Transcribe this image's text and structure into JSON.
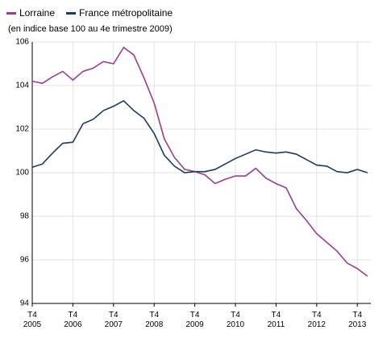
{
  "chart_data": {
    "type": "line",
    "subtitle": "(en indice base 100 au 4e trimestre 2009)",
    "categories": [
      "T4\n2005",
      null,
      null,
      null,
      "T4\n2006",
      null,
      null,
      null,
      "T4\n2007",
      null,
      null,
      null,
      "T4\n2008",
      null,
      null,
      null,
      "T4\n2009",
      null,
      null,
      null,
      "T4\n2010",
      null,
      null,
      null,
      "T4\n2011",
      null,
      null,
      null,
      "T4\n2012",
      null,
      null,
      null,
      "T4\n2013",
      null
    ],
    "series": [
      {
        "name": "Lorraine",
        "color": "#9b3d8f",
        "values": [
          104.2,
          104.1,
          104.4,
          104.65,
          104.25,
          104.65,
          104.8,
          105.1,
          105.0,
          105.75,
          105.4,
          104.35,
          103.2,
          101.55,
          100.7,
          100.15,
          100.05,
          99.9,
          99.5,
          99.7,
          99.85,
          99.85,
          100.2,
          99.75,
          99.5,
          99.3,
          98.35,
          97.8,
          97.2,
          96.8,
          96.4,
          95.85,
          95.6,
          95.25
        ]
      },
      {
        "name": "France métropolitaine",
        "color": "#1f3a5f",
        "values": [
          100.25,
          100.4,
          100.9,
          101.35,
          101.4,
          102.25,
          102.45,
          102.85,
          103.05,
          103.3,
          102.85,
          102.5,
          101.8,
          100.8,
          100.3,
          100.0,
          100.05,
          100.05,
          100.15,
          100.4,
          100.65,
          100.85,
          101.05,
          100.95,
          100.9,
          100.95,
          100.85,
          100.6,
          100.35,
          100.3,
          100.05,
          100.0,
          100.15,
          100.0
        ]
      }
    ],
    "ylim": [
      94,
      106
    ],
    "yticks": [
      94,
      96,
      98,
      100,
      102,
      104,
      106
    ],
    "grid": true,
    "legend": "top-left"
  }
}
